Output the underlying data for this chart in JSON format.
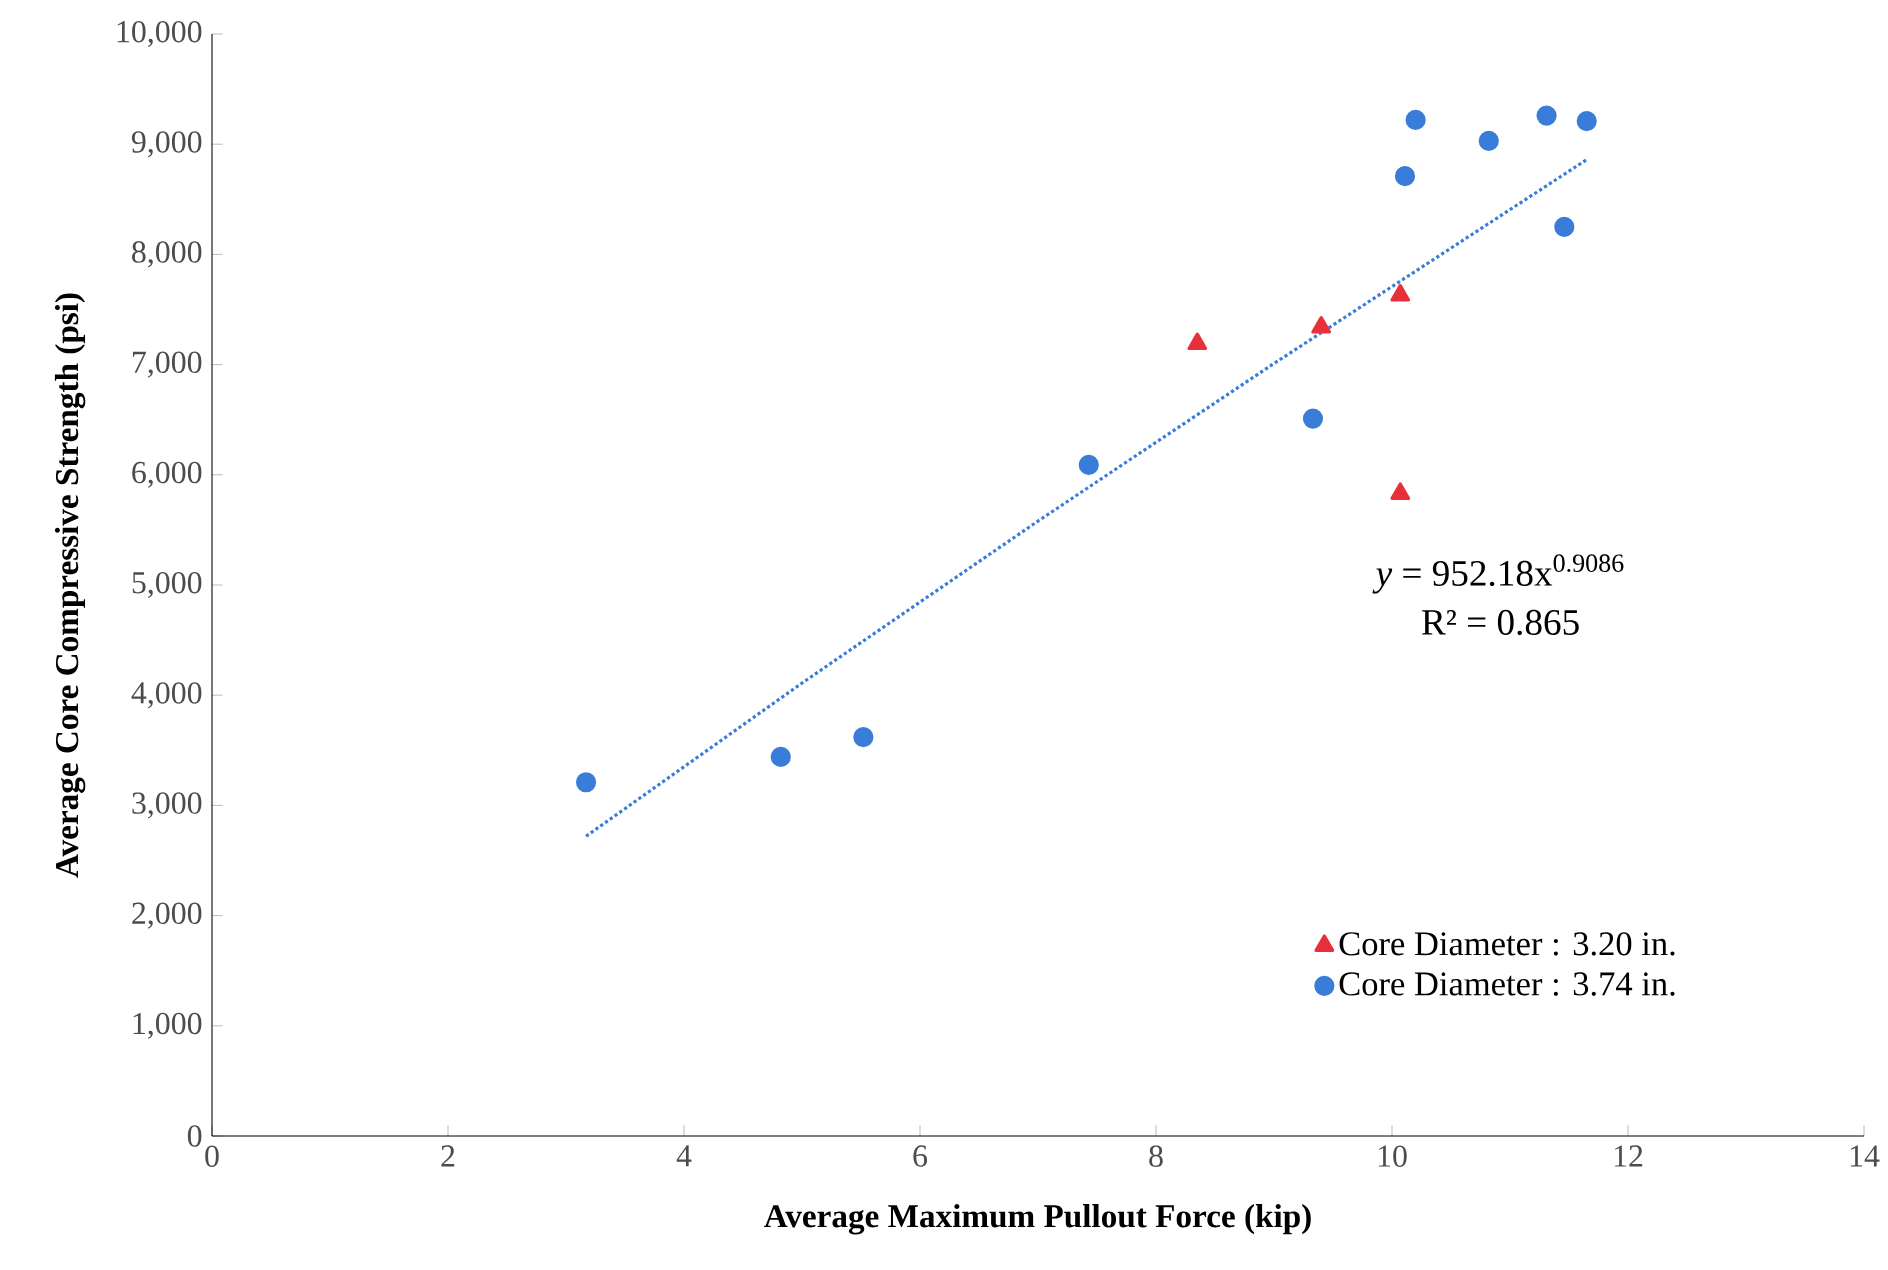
{
  "chart_data": {
    "type": "scatter",
    "xlabel": "Average Maximum  Pullout Force (kip)",
    "ylabel": "Average Core Compressive Strength (psi)",
    "xlim": [
      0,
      14
    ],
    "ylim": [
      0,
      10000
    ],
    "xticks": [
      0,
      2,
      4,
      6,
      8,
      10,
      12,
      14
    ],
    "yticks": [
      {
        "value": 0,
        "label": "0"
      },
      {
        "value": 1000,
        "label": "1,000"
      },
      {
        "value": 2000,
        "label": "2,000"
      },
      {
        "value": 3000,
        "label": "3,000"
      },
      {
        "value": 4000,
        "label": "4,000"
      },
      {
        "value": 5000,
        "label": "5,000"
      },
      {
        "value": 6000,
        "label": "6,000"
      },
      {
        "value": 7000,
        "label": "7,000"
      },
      {
        "value": 8000,
        "label": "8,000"
      },
      {
        "value": 9000,
        "label": "9,000"
      },
      {
        "value": 10000,
        "label": "10,000"
      }
    ],
    "legend": "bottom right",
    "series": [
      {
        "name": "Core Diameter : 3.20 in.",
        "color": "#e8303a",
        "marker": "triangle",
        "x": [
          8.35,
          9.4,
          10.07,
          10.07
        ],
        "values": [
          7190,
          7340,
          7630,
          5830
        ]
      },
      {
        "name": "Core Diameter : 3.74 in.",
        "color": "#3a7dd8",
        "marker": "circle",
        "x": [
          3.17,
          4.82,
          5.52,
          7.43,
          9.33,
          10.11,
          10.2,
          10.82,
          11.31,
          11.46,
          11.65
        ],
        "values": [
          3210,
          3440,
          3620,
          6090,
          6510,
          8710,
          9220,
          9030,
          9260,
          8250,
          9210
        ]
      },
      {
        "type": "line",
        "color": "#3a7dd8",
        "marker": "none",
        "line_style": "dotted",
        "x": [
          3.17,
          5,
          7,
          9,
          11.65
        ],
        "values": [
          2720,
          4110,
          5580,
          7010,
          8860
        ]
      }
    ],
    "annotations": [
      "*y* = 952.18x$^{0.9086}$",
      "R² = 0.865"
    ]
  }
}
